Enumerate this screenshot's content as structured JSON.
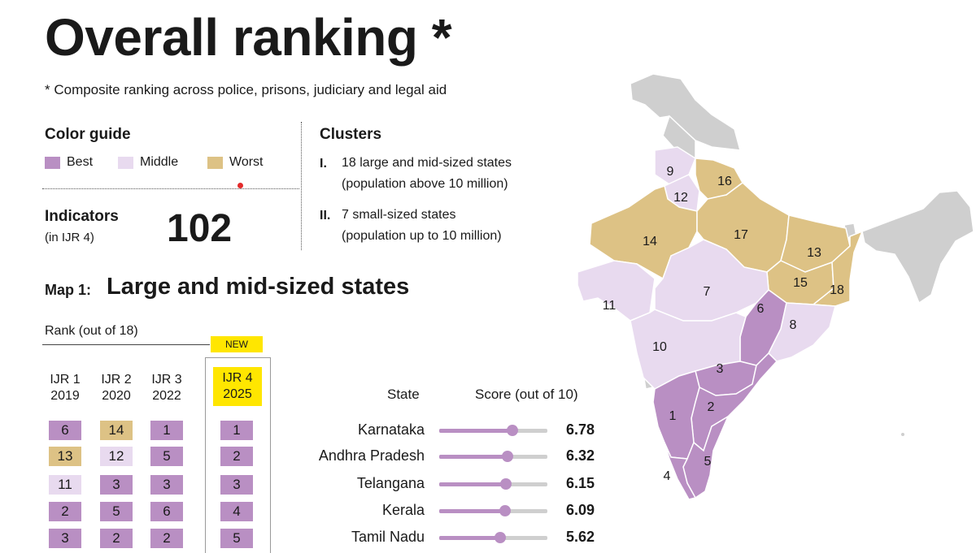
{
  "title": "Overall ranking *",
  "subtitle": "* Composite ranking across police, prisons, judiciary and legal aid",
  "color_guide": {
    "title": "Color guide",
    "items": [
      {
        "label": "Best",
        "color": "#b98fc3"
      },
      {
        "label": "Middle",
        "color": "#e8daef"
      },
      {
        "label": "Worst",
        "color": "#ddc285"
      }
    ]
  },
  "indicators": {
    "title": "Indicators",
    "sub": "(in IJR 4)",
    "value": "102"
  },
  "clusters": {
    "title": "Clusters",
    "items": [
      {
        "num": "I.",
        "line1": "18 large and mid-sized states",
        "line2": "(population above 10 million)"
      },
      {
        "num": "II.",
        "line1": "7 small-sized states",
        "line2": "(population up to 10 million)"
      }
    ]
  },
  "map_section": {
    "label": "Map 1:",
    "title": "Large and mid-sized states"
  },
  "rank_table": {
    "heading": "Rank (out of 18)",
    "new_badge": "NEW",
    "columns": [
      {
        "name": "IJR 1",
        "year": "2019"
      },
      {
        "name": "IJR 2",
        "year": "2020"
      },
      {
        "name": "IJR 3",
        "year": "2022"
      },
      {
        "name": "IJR 4",
        "year": "2025"
      }
    ],
    "rows": [
      [
        "6",
        "14",
        "1",
        "1"
      ],
      [
        "13",
        "12",
        "5",
        "2"
      ],
      [
        "11",
        "3",
        "3",
        "3"
      ],
      [
        "2",
        "5",
        "6",
        "4"
      ],
      [
        "3",
        "2",
        "2",
        "5"
      ]
    ],
    "colors": [
      [
        "best",
        "worst",
        "best",
        "best"
      ],
      [
        "worst",
        "middle",
        "best",
        "best"
      ],
      [
        "middle",
        "best",
        "best",
        "best"
      ],
      [
        "best",
        "best",
        "best",
        "best"
      ],
      [
        "best",
        "best",
        "best",
        "best"
      ]
    ]
  },
  "score_table": {
    "state_header": "State",
    "score_header": "Score (out of 10)",
    "max": 10,
    "rows": [
      {
        "state": "Karnataka",
        "score": 6.78,
        "score_label": "6.78"
      },
      {
        "state": "Andhra Pradesh",
        "score": 6.32,
        "score_label": "6.32"
      },
      {
        "state": "Telangana",
        "score": 6.15,
        "score_label": "6.15"
      },
      {
        "state": "Kerala",
        "score": 6.09,
        "score_label": "6.09"
      },
      {
        "state": "Tamil Nadu",
        "score": 5.62,
        "score_label": "5.62"
      }
    ]
  },
  "map_ranks": [
    {
      "rank": "9",
      "category": "middle"
    },
    {
      "rank": "12",
      "category": "middle"
    },
    {
      "rank": "16",
      "category": "worst"
    },
    {
      "rank": "14",
      "category": "worst"
    },
    {
      "rank": "17",
      "category": "worst"
    },
    {
      "rank": "13",
      "category": "worst"
    },
    {
      "rank": "15",
      "category": "worst"
    },
    {
      "rank": "18",
      "category": "worst"
    },
    {
      "rank": "7",
      "category": "middle"
    },
    {
      "rank": "6",
      "category": "best"
    },
    {
      "rank": "11",
      "category": "middle"
    },
    {
      "rank": "8",
      "category": "middle"
    },
    {
      "rank": "10",
      "category": "middle"
    },
    {
      "rank": "3",
      "category": "best"
    },
    {
      "rank": "2",
      "category": "best"
    },
    {
      "rank": "1",
      "category": "best"
    },
    {
      "rank": "5",
      "category": "best"
    },
    {
      "rank": "4",
      "category": "best"
    }
  ]
}
